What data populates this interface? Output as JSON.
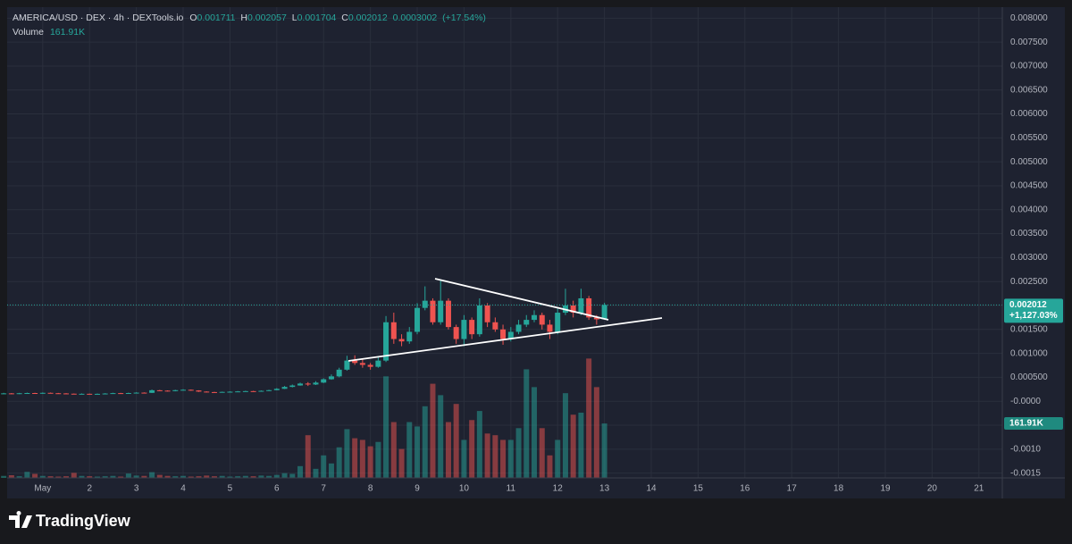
{
  "chart_data": {
    "type": "candlestick",
    "legend": {
      "symbol": "AMERICA/USD · DEX · 4h · DEXTools.io",
      "fields": [
        {
          "label": "O",
          "value": 0.001711
        },
        {
          "label": "H",
          "value": 0.002057
        },
        {
          "label": "L",
          "value": 0.001704
        },
        {
          "label": "C",
          "value": 0.002012
        }
      ],
      "change": 0.0003002,
      "change_pct": {
        "value": 17.54,
        "label": "(+17.54%)"
      },
      "volume_label": "Volume",
      "volume_value": {
        "value": 161910,
        "label": "161.91K"
      }
    },
    "x": [
      0.167,
      0.333,
      0.5,
      0.667,
      0.833,
      1,
      1.167,
      1.333,
      1.5,
      1.667,
      1.833,
      2,
      2.167,
      2.333,
      2.5,
      2.667,
      2.833,
      3,
      3.167,
      3.333,
      3.5,
      3.667,
      3.833,
      4,
      4.167,
      4.333,
      4.5,
      4.667,
      4.833,
      5,
      5.167,
      5.333,
      5.5,
      5.667,
      5.833,
      6,
      6.167,
      6.333,
      6.5,
      6.667,
      6.833,
      7,
      7.167,
      7.333,
      7.5,
      7.667,
      7.833,
      8,
      8.167,
      8.333,
      8.5,
      8.667,
      8.833,
      9,
      9.167,
      9.333,
      9.5,
      9.667,
      9.833,
      10,
      10.167,
      10.333,
      10.5,
      10.667,
      10.833,
      11,
      11.167,
      11.333,
      11.5,
      11.667,
      11.833,
      12,
      12.167,
      12.333,
      12.5,
      12.667,
      12.833,
      13
    ],
    "open": [
      0.000158,
      0.000165,
      0.000155,
      0.000168,
      0.000172,
      0.00016,
      0.000176,
      0.000168,
      0.000164,
      0.000158,
      0.00015,
      0.000156,
      0.000148,
      0.000155,
      0.000162,
      0.00017,
      0.000165,
      0.000172,
      0.00018,
      0.000176,
      0.00023,
      0.000222,
      0.000212,
      0.000232,
      0.00024,
      0.000226,
      0.000202,
      0.000192,
      0.000186,
      0.000196,
      0.0002,
      0.000206,
      0.000212,
      0.000204,
      0.000218,
      0.000232,
      0.00026,
      0.0003,
      0.00033,
      0.00037,
      0.00035,
      0.00039,
      0.00046,
      0.00052,
      0.00066,
      0.00085,
      0.0008,
      0.00076,
      0.00072,
      0.00085,
      0.00165,
      0.0013,
      0.00125,
      0.00145,
      0.00195,
      0.0021,
      0.00165,
      0.0021,
      0.00155,
      0.0013,
      0.0017,
      0.0014,
      0.002,
      0.00165,
      0.0015,
      0.0013,
      0.00145,
      0.0016,
      0.0017,
      0.0018,
      0.0016,
      0.00145,
      0.00185,
      0.002,
      0.00185,
      0.00215,
      0.00175,
      0.001711
    ],
    "high": [
      0.000176,
      0.000172,
      0.000175,
      0.00018,
      0.000178,
      0.000184,
      0.000182,
      0.000174,
      0.00017,
      0.000162,
      0.000164,
      0.00016,
      0.000162,
      0.00017,
      0.000178,
      0.000176,
      0.00018,
      0.000188,
      0.000186,
      0.000245,
      0.000238,
      0.000228,
      0.00024,
      0.000252,
      0.000246,
      0.00023,
      0.000208,
      0.000198,
      0.000202,
      0.000208,
      0.000214,
      0.00022,
      0.000218,
      0.000226,
      0.00024,
      0.000275,
      0.00032,
      0.00035,
      0.00039,
      0.0004,
      0.00042,
      0.00048,
      0.00056,
      0.0007,
      0.00095,
      0.00096,
      0.00088,
      0.0008,
      0.00092,
      0.00178,
      0.00185,
      0.0014,
      0.00155,
      0.00205,
      0.0024,
      0.00215,
      0.00255,
      0.00215,
      0.0016,
      0.0018,
      0.00175,
      0.00215,
      0.00205,
      0.00175,
      0.0016,
      0.00155,
      0.0017,
      0.0018,
      0.0019,
      0.00185,
      0.0017,
      0.00195,
      0.00235,
      0.0021,
      0.00235,
      0.0022,
      0.0018,
      0.002057
    ],
    "low": [
      0.00015,
      0.000148,
      0.00015,
      0.000162,
      0.000154,
      0.000156,
      0.000162,
      0.000158,
      0.00015,
      0.000144,
      0.000145,
      0.000142,
      0.000143,
      0.00015,
      0.000158,
      0.00016,
      0.00016,
      0.000168,
      0.00017,
      0.000172,
      0.000214,
      0.000205,
      0.000208,
      0.000226,
      0.00022,
      0.000196,
      0.000186,
      0.00018,
      0.000182,
      0.00019,
      0.000196,
      0.0002,
      0.000198,
      0.0002,
      0.000212,
      0.000228,
      0.000255,
      0.00029,
      0.000325,
      0.00032,
      0.00034,
      0.00038,
      0.00045,
      0.0005,
      0.00064,
      0.00076,
      0.0007,
      0.00066,
      0.0007,
      0.00082,
      0.0012,
      0.00115,
      0.0012,
      0.0014,
      0.0019,
      0.0016,
      0.0016,
      0.0015,
      0.0012,
      0.00115,
      0.0013,
      0.00135,
      0.00155,
      0.00145,
      0.00118,
      0.00125,
      0.0014,
      0.00155,
      0.00165,
      0.0015,
      0.0013,
      0.0014,
      0.0018,
      0.00175,
      0.0018,
      0.0017,
      0.0016,
      0.001704
    ],
    "close": [
      0.000165,
      0.000155,
      0.000168,
      0.000172,
      0.00016,
      0.000176,
      0.000168,
      0.000164,
      0.000158,
      0.00015,
      0.000156,
      0.000148,
      0.000155,
      0.000162,
      0.00017,
      0.000165,
      0.000172,
      0.00018,
      0.000176,
      0.00023,
      0.000222,
      0.000212,
      0.000232,
      0.00024,
      0.000226,
      0.000202,
      0.000192,
      0.000186,
      0.000196,
      0.0002,
      0.000206,
      0.000212,
      0.000204,
      0.000218,
      0.000232,
      0.00026,
      0.0003,
      0.00033,
      0.00037,
      0.00035,
      0.00039,
      0.00046,
      0.00052,
      0.00066,
      0.00085,
      0.0008,
      0.00076,
      0.00072,
      0.00085,
      0.00165,
      0.0013,
      0.00125,
      0.00145,
      0.00195,
      0.0021,
      0.00165,
      0.0021,
      0.00155,
      0.0013,
      0.0017,
      0.0014,
      0.002,
      0.00165,
      0.0015,
      0.0013,
      0.00145,
      0.0016,
      0.0017,
      0.0018,
      0.0016,
      0.00145,
      0.00185,
      0.002,
      0.00185,
      0.00215,
      0.00175,
      0.001711,
      0.002012
    ],
    "volume": [
      6000,
      8000,
      5000,
      18000,
      12000,
      6000,
      5000,
      4000,
      5000,
      15000,
      6000,
      5000,
      4000,
      5000,
      6000,
      4000,
      13000,
      7000,
      6000,
      17000,
      9000,
      6000,
      5000,
      6000,
      4000,
      5000,
      7000,
      5000,
      6000,
      4000,
      5000,
      6000,
      5000,
      7000,
      6000,
      9000,
      14000,
      12000,
      35000,
      127000,
      27000,
      67000,
      43000,
      91000,
      145000,
      118000,
      113000,
      94000,
      107000,
      302000,
      166000,
      86000,
      166000,
      153000,
      213000,
      280000,
      246000,
      166000,
      220000,
      113000,
      172000,
      199000,
      132000,
      127000,
      113000,
      113000,
      148000,
      323000,
      270000,
      148000,
      67000,
      113000,
      252000,
      188000,
      194000,
      355000,
      270000,
      161910
    ],
    "xlim": [
      0.24,
      21.5
    ],
    "xticks": [
      {
        "value": 1,
        "label": "May"
      },
      2,
      3,
      4,
      5,
      6,
      7,
      8,
      9,
      10,
      11,
      12,
      13,
      14,
      15,
      16,
      17,
      18,
      19,
      20,
      21
    ],
    "ylim": [
      -0.0016,
      0.00823
    ],
    "yticks": [
      {
        "value": 0.008,
        "label": "0.008000"
      },
      {
        "value": 0.0075,
        "label": "0.007500"
      },
      {
        "value": 0.007,
        "label": "0.007000"
      },
      {
        "value": 0.0065,
        "label": "0.006500"
      },
      {
        "value": 0.006,
        "label": "0.006000"
      },
      {
        "value": 0.0055,
        "label": "0.005500"
      },
      {
        "value": 0.005,
        "label": "0.005000"
      },
      {
        "value": 0.0045,
        "label": "0.004500"
      },
      {
        "value": 0.004,
        "label": "0.004000"
      },
      {
        "value": 0.0035,
        "label": "0.003500"
      },
      {
        "value": 0.003,
        "label": "0.003000"
      },
      {
        "value": 0.0025,
        "label": "0.002500"
      },
      {
        "value": 0.002,
        "label": "0.002000"
      },
      {
        "value": 0.0015,
        "label": "0.001500"
      },
      {
        "value": 0.001,
        "label": "0.001000"
      },
      {
        "value": 0.0005,
        "label": "0.000500"
      },
      {
        "value": 0,
        "label": "-0.0000"
      },
      {
        "value": -0.0005,
        "label": "-0.0005"
      },
      {
        "value": -0.001,
        "label": "-0.0010"
      },
      {
        "value": -0.0015,
        "label": "-0.0015"
      }
    ],
    "vlim": [
      0,
      1400000
    ],
    "up_color": "#26a69a",
    "down_color": "#ef5350",
    "grid": true,
    "last_price": 0.002012,
    "last_change": {
      "value": 1127.03,
      "label": "+1,127.03%"
    },
    "last_volume": {
      "value": 161910,
      "label": "161.91K"
    },
    "brand": "TradingView"
  }
}
